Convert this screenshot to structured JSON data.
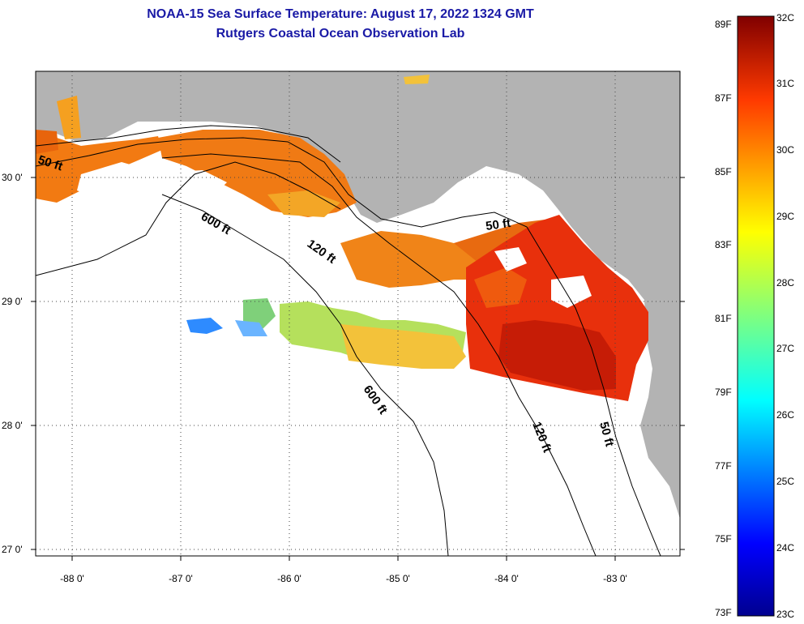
{
  "title": {
    "line1": "NOAA-15 Sea Surface Temperature:  August 17, 2022 1324 GMT",
    "line2": "Rutgers Coastal Ocean Observation Lab"
  },
  "map": {
    "lon_labels": [
      "-88 0'",
      "-87 0'",
      "-86 0'",
      "-85 0'",
      "-84 0'",
      "-83 0'"
    ],
    "lat_labels": [
      "30 0'",
      "29 0'",
      "28 0'",
      "27 0'"
    ],
    "contour_labels": [
      "50 ft",
      "600 ft",
      "120 ft",
      "50 ft",
      "600 ft",
      "120 ft",
      "50 ft"
    ],
    "colors": {
      "land": "#b3b3b3",
      "water": "#ffffff"
    }
  },
  "colorbar": {
    "fahrenheit": [
      "89F",
      "87F",
      "85F",
      "83F",
      "81F",
      "79F",
      "77F",
      "75F",
      "73F"
    ],
    "celsius": [
      "32C",
      "31C",
      "30C",
      "29C",
      "28C",
      "27C",
      "26C",
      "25C",
      "24C",
      "23C"
    ]
  }
}
